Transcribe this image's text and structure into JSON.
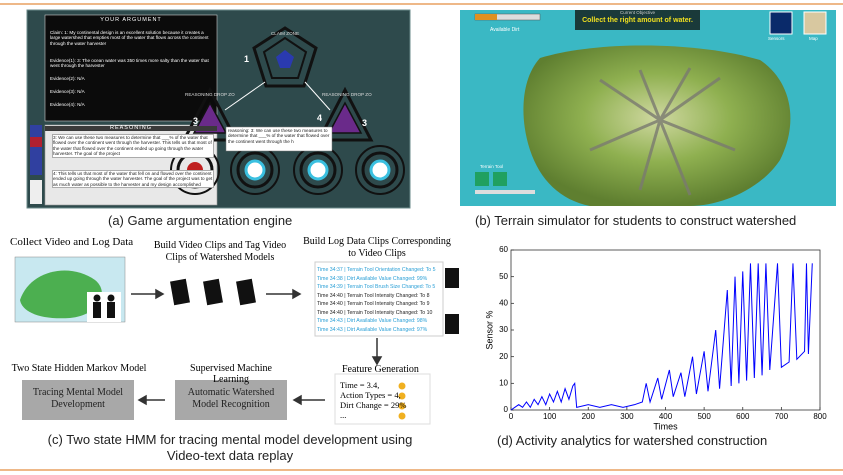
{
  "panel_a": {
    "argument_title": "YOUR ARGUMENT",
    "claim": "Claim: 1: My continental design is an excellent solution because it creates a large watershed that empties most of the water that flows across the continent through the water harvester",
    "evidence": [
      "Evidence(1): 3: The ocean water was 350 times more salty than the water that went through the harvester",
      "Evidence(2): N/A",
      "Evidence(3): N/A",
      "Evidence(4): N/A"
    ],
    "reasoning_title": "REASONING",
    "reasoning": [
      "3: We can use these two measures to determine that ___% of the water that flowed over the continent went through the harvester. This tells us that most of the water that flowed over the continent ended up going through the water harvester. The goal of the project",
      "4: This tells us that most of the water that fell on and flowed over the continent ended up going through the water harvester. The goal of the project was to get as much water as possible to the harvester and my design accomplished"
    ],
    "claim_zone": "CLAIM ZONE",
    "reasoning_zone_left": "REASONING DROP ZO",
    "reasoning_zone_right": "REASONING DROP ZO",
    "zone_numbers": [
      "1",
      "3",
      "4",
      "3"
    ],
    "popup": "reasoning: 3: We can use these two measures to determine that ___% of the water that flowed over the continent went through the h",
    "caption": "(a) Game argumentation engine"
  },
  "panel_b": {
    "objective_title": "Current Objective",
    "objective": "Collect the right amount of water.",
    "available_dirt": "Available Dirt",
    "sensors": "Sensors",
    "map": "Map",
    "terrain_tool": "Terrain Tool",
    "caption": "(b) Terrain simulator for students to construct watershed"
  },
  "panel_c": {
    "collect": "Collect Video and Log Data",
    "build_video": "Build Video Clips and Tag Video Clips of Watershed Models",
    "build_log": "Build Log Data Clips Corresponding to Video Clips",
    "log_lines": [
      {
        "text": "Time 34:37 |  Terrain Tool Orientation Changed: To 5",
        "color": "#2a9fd6"
      },
      {
        "text": "Time 34:38 |  Dirt Available Value Changed: 99%",
        "color": "#2a9fd6"
      },
      {
        "text": "Time 34:39 |  Terrain Tool Brush Size Changed: To 5",
        "color": "#2a9fd6"
      },
      {
        "text": "Time 34:40 |  Terrain Tool Intensity Changed: To 8",
        "color": "#222222"
      },
      {
        "text": "Time 34:40 |  Terrain Tool Intensity Changed: To 9",
        "color": "#222222"
      },
      {
        "text": "Time 34:40 |  Terrain Tool Intensity Changed: To 10",
        "color": "#222222"
      },
      {
        "text": "Time 34:43 |  Dirt Available Value Changed: 98%",
        "color": "#2a9fd6"
      },
      {
        "text": "Time 34:43 |  Dirt Available Value Changed: 97%",
        "color": "#2a9fd6"
      }
    ],
    "feature_generation": "Feature Generation",
    "features": [
      "Time = 3.4,",
      "Action Types = 4,",
      "Dirt Change = 29%",
      "..."
    ],
    "supervised": "Supervised Machine Learning",
    "recognition": "Automatic Watershed Model Recognition",
    "hmm": "Two State Hidden Markov Model",
    "tracing": "Tracing Mental Model Development",
    "caption": "(c) Two state HMM for tracing mental model development using Video-text data replay"
  },
  "chart_data": {
    "type": "line",
    "caption": "(d) Activity analytics for watershed construction",
    "x_label": "Times",
    "y_label": "Sensor %",
    "color": "#0000ff",
    "x": [
      0,
      10,
      20,
      30,
      40,
      50,
      60,
      70,
      80,
      90,
      100,
      110,
      120,
      130,
      140,
      150,
      160,
      165,
      170,
      200,
      230,
      260,
      290,
      320,
      340,
      350,
      360,
      380,
      390,
      410,
      420,
      440,
      450,
      470,
      480,
      500,
      510,
      530,
      540,
      560,
      570,
      580,
      590,
      600,
      610,
      620,
      630,
      640,
      650,
      660,
      670,
      690,
      700,
      720,
      730,
      740,
      760,
      765,
      770,
      780
    ],
    "values": [
      0,
      1,
      2,
      1,
      3,
      1,
      4,
      2,
      5,
      2,
      6,
      3,
      7,
      3,
      8,
      4,
      9,
      10,
      1,
      2,
      1,
      2,
      1,
      2,
      3,
      10,
      3,
      12,
      4,
      15,
      5,
      14,
      5,
      20,
      6,
      22,
      7,
      30,
      8,
      45,
      9,
      50,
      10,
      52,
      11,
      55,
      12,
      55,
      13,
      55,
      15,
      55,
      16,
      18,
      55,
      19,
      22,
      55,
      21,
      55
    ],
    "xlim": [
      0,
      800
    ],
    "ylim": [
      0,
      60
    ],
    "xticks": [
      0,
      100,
      200,
      300,
      400,
      500,
      600,
      700,
      800
    ],
    "yticks": [
      0,
      10,
      20,
      30,
      40,
      50,
      60
    ]
  }
}
